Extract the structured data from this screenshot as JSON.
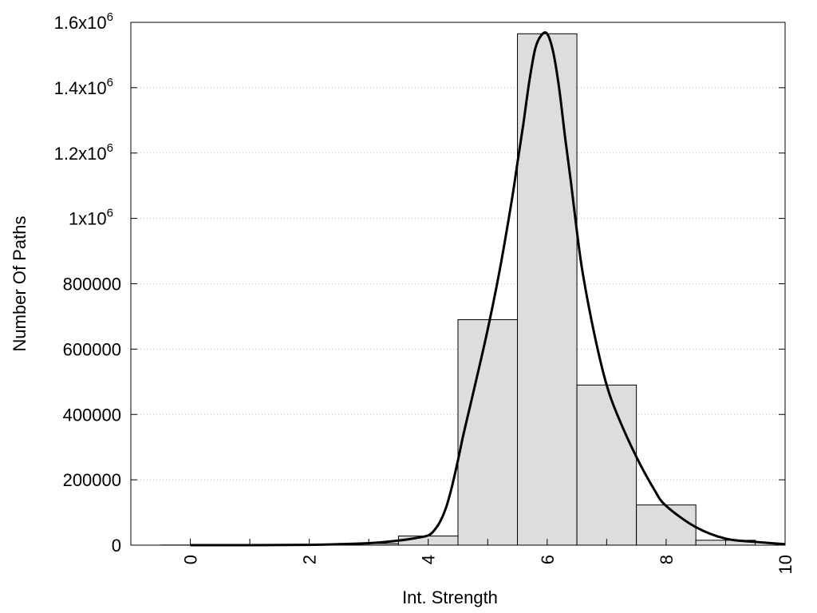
{
  "chart_data": {
    "type": "bar",
    "title": "",
    "xlabel": "Int. Strength",
    "ylabel": "Number Of Paths",
    "xlim": [
      -1,
      10
    ],
    "ylim": [
      0,
      1600000
    ],
    "grid": true,
    "x_ticks": [
      0,
      2,
      4,
      6,
      8,
      10
    ],
    "y_ticks": [
      {
        "value": 0,
        "label": "0"
      },
      {
        "value": 200000,
        "label": "200000"
      },
      {
        "value": 400000,
        "label": "400000"
      },
      {
        "value": 600000,
        "label": "600000"
      },
      {
        "value": 800000,
        "label": "800000"
      },
      {
        "value": 1000000,
        "label": "1x10",
        "exp": "6"
      },
      {
        "value": 1200000,
        "label": "1.2x10",
        "exp": "6"
      },
      {
        "value": 1400000,
        "label": "1.4x10",
        "exp": "6"
      },
      {
        "value": 1600000,
        "label": "1.6x10",
        "exp": "6"
      }
    ],
    "categories": [
      0,
      1,
      2,
      3,
      4,
      5,
      6,
      7,
      8,
      9
    ],
    "values": [
      500,
      800,
      1500,
      5000,
      28000,
      690000,
      1565000,
      490000,
      123000,
      15000
    ],
    "bar_width": 1,
    "bar_color": "#dddddd",
    "curve": {
      "color": "#000000",
      "x": [
        0,
        1,
        2,
        2.5,
        3,
        3.5,
        3.8,
        4,
        4.1,
        4.2,
        4.3,
        4.4,
        4.5,
        4.6,
        4.8,
        5,
        5.2,
        5.4,
        5.5,
        5.6,
        5.7,
        5.8,
        5.9,
        6,
        6.1,
        6.2,
        6.3,
        6.4,
        6.5,
        6.6,
        6.8,
        7,
        7.2,
        7.5,
        7.8,
        8,
        8.5,
        9,
        9.5,
        10
      ],
      "y": [
        0,
        0,
        1000,
        3000,
        6000,
        14000,
        22000,
        30000,
        45000,
        72000,
        115000,
        180000,
        260000,
        345000,
        500000,
        660000,
        840000,
        1050000,
        1170000,
        1290000,
        1420000,
        1520000,
        1560000,
        1565000,
        1510000,
        1400000,
        1250000,
        1110000,
        960000,
        830000,
        640000,
        490000,
        390000,
        270000,
        170000,
        120000,
        55000,
        20000,
        10000,
        3000
      ]
    }
  }
}
